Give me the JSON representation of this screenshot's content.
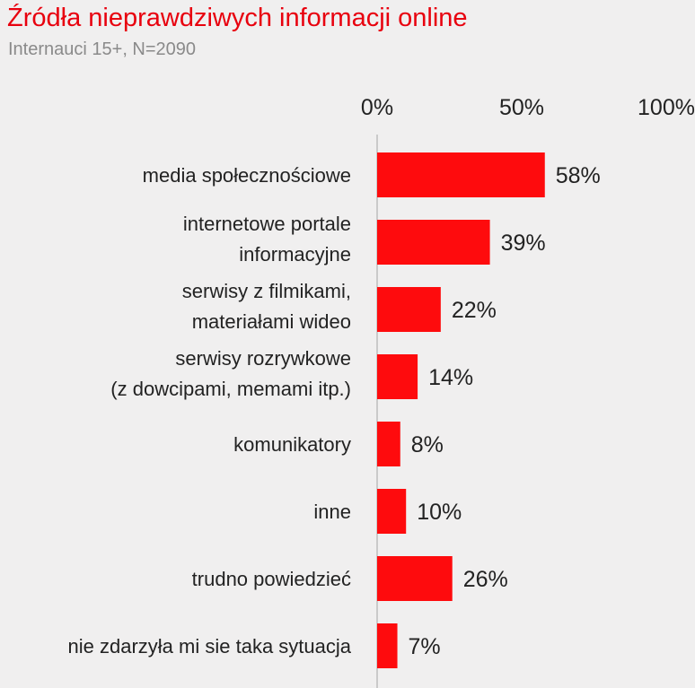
{
  "colors": {
    "bar": "#fe0b0d",
    "title": "#e8000e",
    "subtitle": "#8a8a8a",
    "text": "#222222",
    "axis_line": "#bdbdbd",
    "background": "#f0efef"
  },
  "chart_data": {
    "type": "bar",
    "orientation": "horizontal",
    "title": "Źródła nieprawdziwych informacji online",
    "subtitle": "Internauci 15+, N=2090",
    "xlabel": "",
    "ylabel": "",
    "xlim": [
      0,
      100
    ],
    "unit": "%",
    "grid": false,
    "legend": "none",
    "tick_labels": [
      "0%",
      "50%",
      "100%"
    ],
    "ticks": [
      0,
      50,
      100
    ],
    "categories": [
      [
        "media społecznościowe"
      ],
      [
        "internetowe portale",
        "informacyjne"
      ],
      [
        "serwisy z filmikami,",
        "materiałami wideo"
      ],
      [
        "serwisy rozrywkowe",
        "(z dowcipami, memami itp.)"
      ],
      [
        "komunikatory"
      ],
      [
        "inne"
      ],
      [
        "trudno powiedzieć"
      ],
      [
        "nie zdarzyła mi sie taka sytuacja"
      ]
    ],
    "values": [
      58,
      39,
      22,
      14,
      8,
      10,
      26,
      7
    ],
    "value_labels": [
      "58%",
      "39%",
      "22%",
      "14%",
      "8%",
      "10%",
      "26%",
      "7%"
    ]
  }
}
